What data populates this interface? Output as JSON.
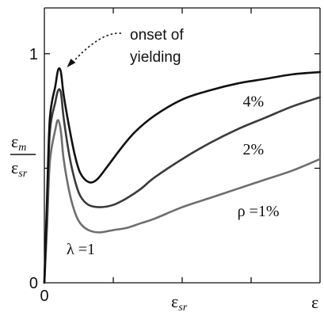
{
  "chart_data": {
    "type": "line",
    "title": "",
    "xlabel": {
      "symbol": "ε",
      "subscript": "sr"
    },
    "ylabel": {
      "numerator_symbol": "ε",
      "numerator_subscript": "m",
      "denominator_symbol": "ε",
      "denominator_subscript": "sr"
    },
    "x_end_label": "ε",
    "xlim": [
      0,
      1
    ],
    "ylim": [
      0,
      1.2
    ],
    "x_tick_labels": [
      {
        "x": 0,
        "label": "0"
      }
    ],
    "y_tick_labels": [
      {
        "y": 0,
        "label": "0"
      },
      {
        "y": 1,
        "label": "1"
      }
    ],
    "x_ticks": [
      0,
      0.25,
      0.5,
      0.75,
      1
    ],
    "y_ticks": [
      0,
      0.5,
      1
    ],
    "grid": false,
    "series": [
      {
        "name": "4%",
        "color": "#111111",
        "x": [
          0.0,
          0.01,
          0.02,
          0.04,
          0.05,
          0.06,
          0.07,
          0.09,
          0.11,
          0.13,
          0.16,
          0.19,
          0.23,
          0.28,
          0.33,
          0.4,
          0.5,
          0.6,
          0.7,
          0.8,
          0.9,
          1.0
        ],
        "y": [
          0.0,
          0.38,
          0.72,
          0.86,
          0.93,
          0.92,
          0.82,
          0.68,
          0.56,
          0.48,
          0.44,
          0.45,
          0.51,
          0.59,
          0.66,
          0.73,
          0.8,
          0.84,
          0.87,
          0.89,
          0.91,
          0.92
        ]
      },
      {
        "name": "2%",
        "color": "#3a3a3a",
        "x": [
          0.0,
          0.01,
          0.02,
          0.04,
          0.05,
          0.06,
          0.07,
          0.09,
          0.11,
          0.13,
          0.16,
          0.2,
          0.25,
          0.3,
          0.35,
          0.4,
          0.5,
          0.6,
          0.7,
          0.8,
          0.9,
          1.0
        ],
        "y": [
          0.0,
          0.33,
          0.66,
          0.79,
          0.84,
          0.83,
          0.72,
          0.56,
          0.45,
          0.38,
          0.34,
          0.33,
          0.34,
          0.37,
          0.41,
          0.46,
          0.54,
          0.61,
          0.67,
          0.72,
          0.77,
          0.81
        ]
      },
      {
        "name": "ρ =1%",
        "color": "#6e6e6e",
        "x": [
          0.0,
          0.01,
          0.02,
          0.04,
          0.05,
          0.06,
          0.07,
          0.09,
          0.11,
          0.13,
          0.16,
          0.2,
          0.25,
          0.3,
          0.35,
          0.4,
          0.5,
          0.6,
          0.7,
          0.8,
          0.9,
          1.0
        ],
        "y": [
          0.0,
          0.25,
          0.53,
          0.67,
          0.71,
          0.66,
          0.54,
          0.4,
          0.31,
          0.26,
          0.23,
          0.22,
          0.23,
          0.24,
          0.26,
          0.28,
          0.33,
          0.37,
          0.41,
          0.45,
          0.49,
          0.54
        ]
      }
    ],
    "series_labels": [
      {
        "series": 0,
        "text": "4%",
        "x": 0.72,
        "y": 0.77
      },
      {
        "series": 1,
        "text": "2%",
        "x": 0.72,
        "y": 0.56
      },
      {
        "series": 2,
        "text": "ρ =1%",
        "x": 0.7,
        "y": 0.29
      }
    ],
    "annotations": [
      {
        "text_lines": [
          "onset of",
          "yielding"
        ],
        "points_to": {
          "x": 0.05,
          "y": 0.93
        }
      },
      {
        "text": "λ =1",
        "x": 0.07,
        "y": 0.13
      }
    ]
  }
}
